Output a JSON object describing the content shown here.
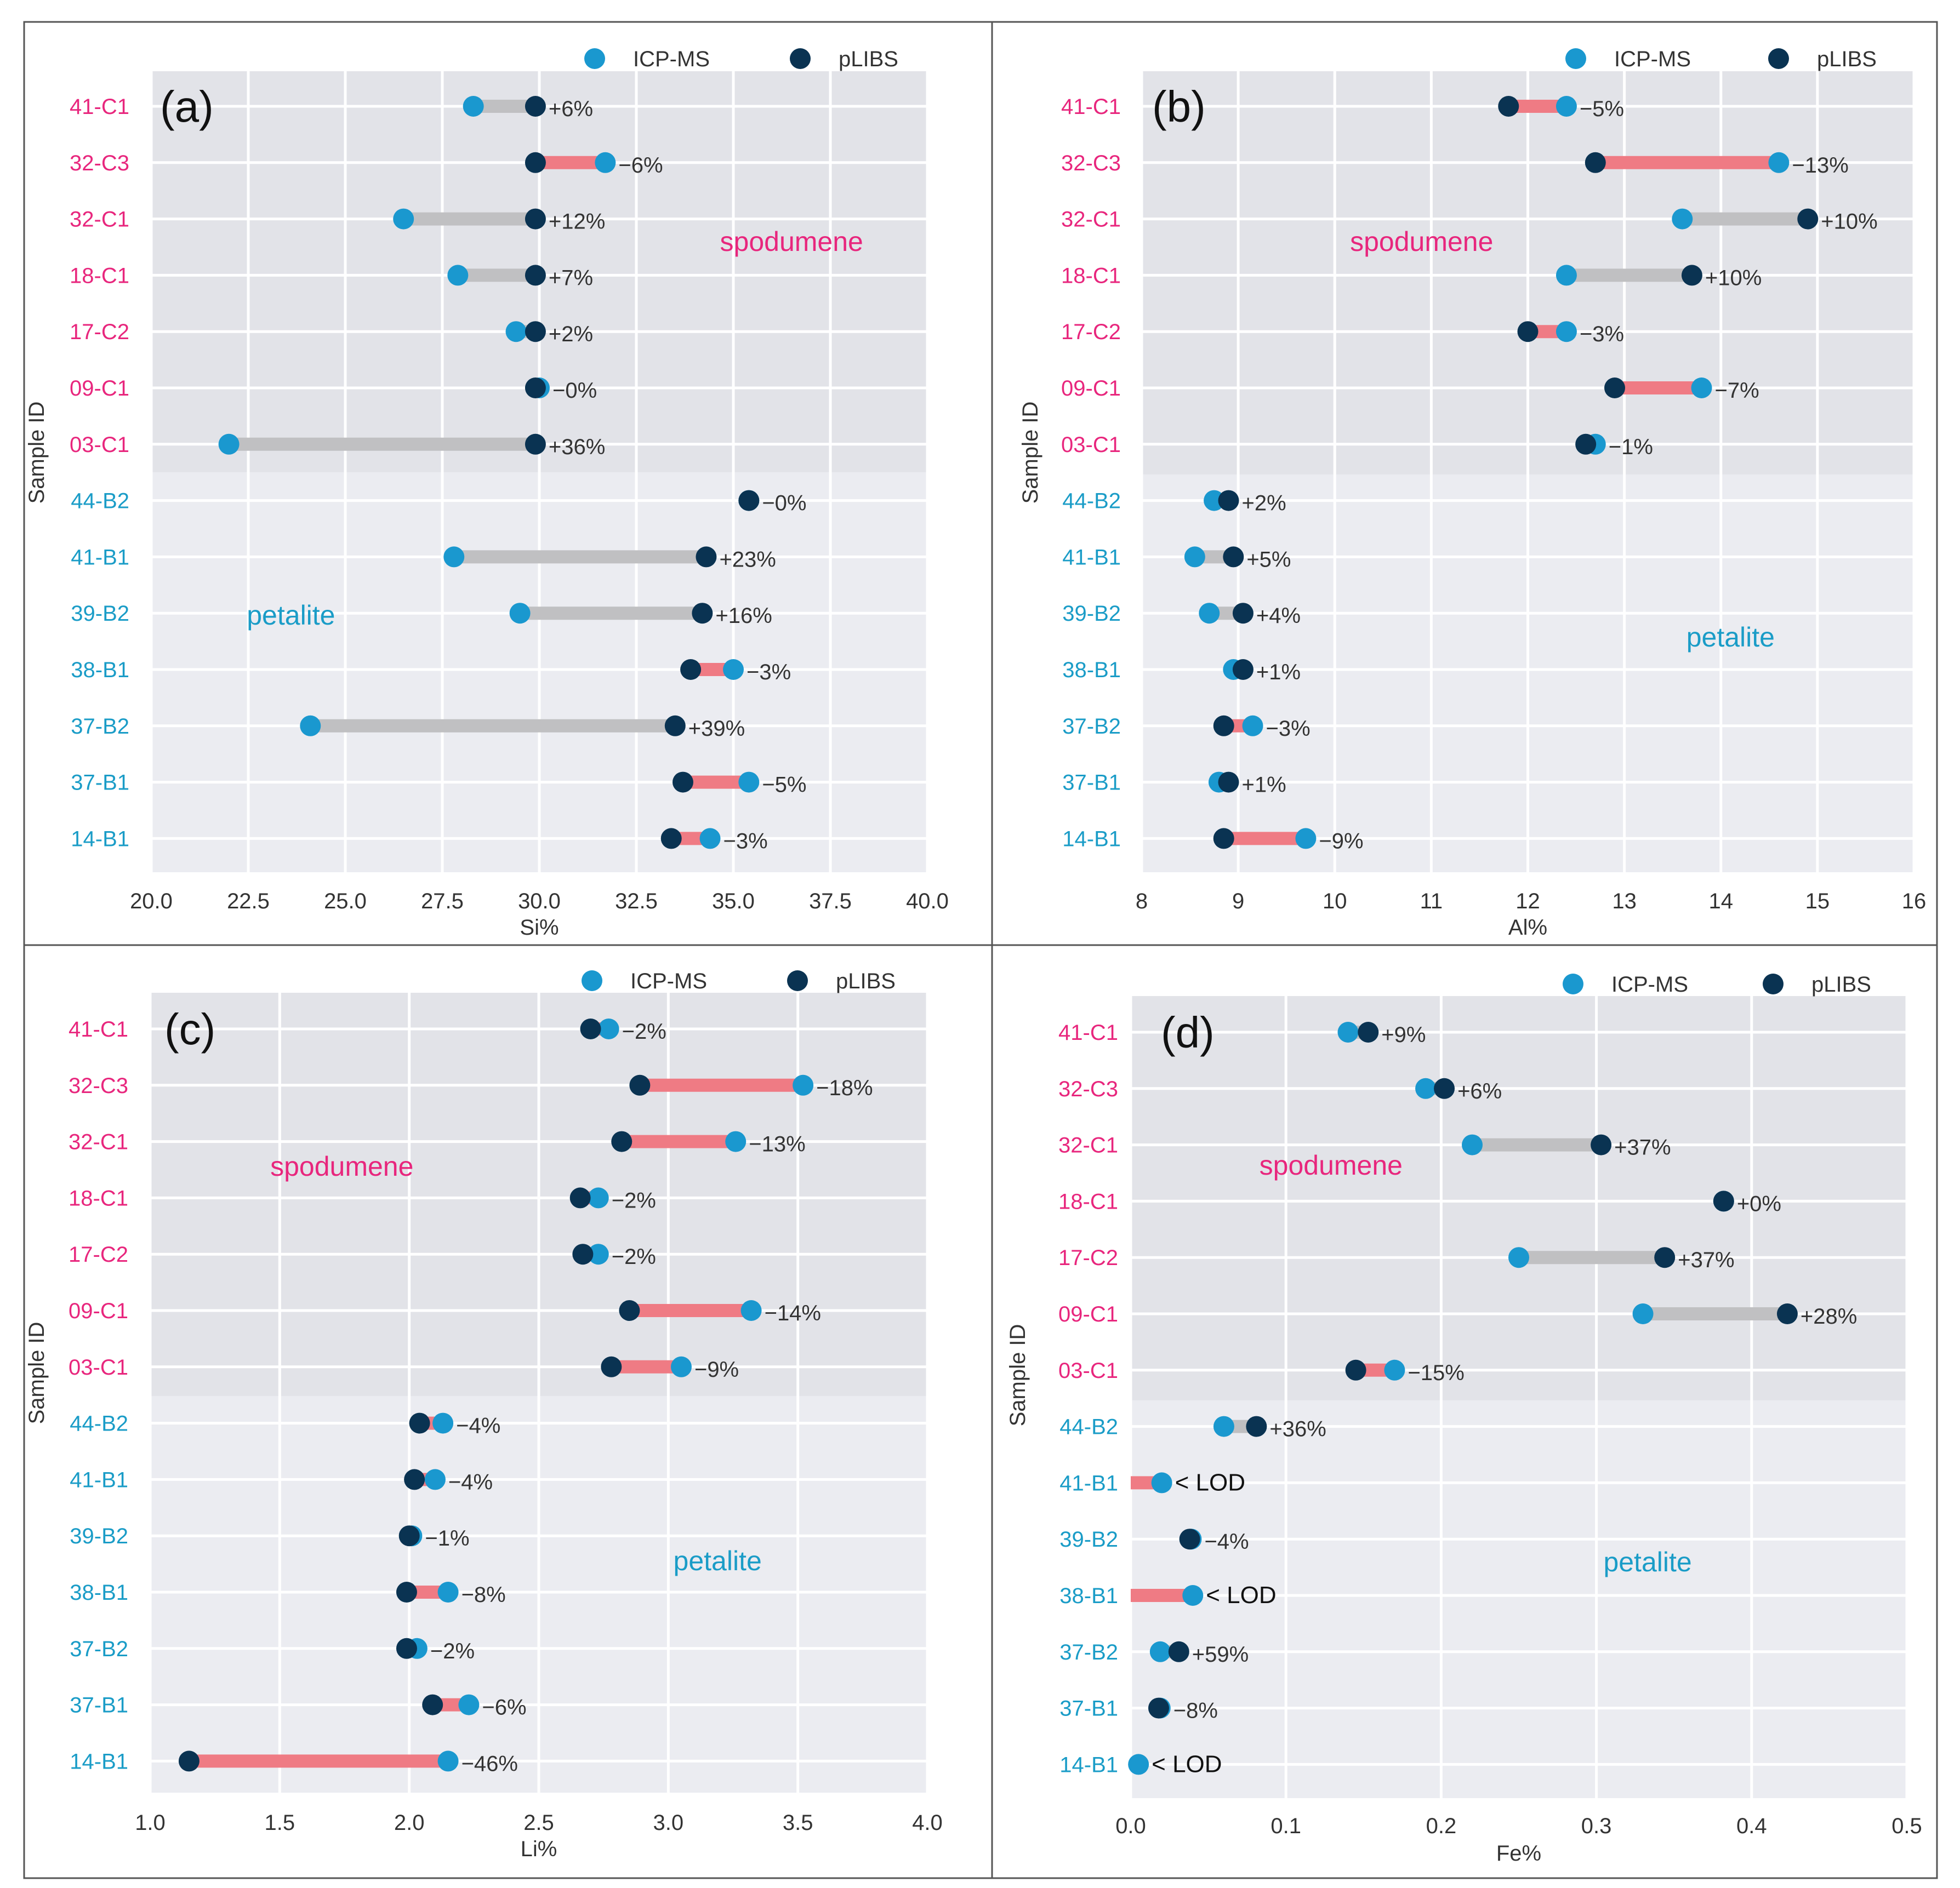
{
  "figure": {
    "y_axis_label": "Sample ID",
    "legend": {
      "icp_label": "ICP-MS",
      "libs_label": "pLIBS"
    },
    "group_labels": {
      "spodumene": "spodumene",
      "petalite": "petalite"
    },
    "lod_label": "< LOD"
  },
  "colors": {
    "spodumene_band": "#e2e3e8",
    "petalite_band": "#ebecf1",
    "grid": "#ffffff",
    "spodumene_text": "#e8267d",
    "petalite_text": "#1a9cc7",
    "icp_marker": "#1a98cf",
    "libs_marker": "#0a3352",
    "positive_bar": "#c0c0c2",
    "negative_bar": "#ef7b84",
    "annotation_text": "#333333",
    "axis_text": "#333333",
    "border": "#555555"
  },
  "sample_ids": [
    "41-C1",
    "32-C3",
    "32-C1",
    "18-C1",
    "17-C2",
    "09-C1",
    "03-C1",
    "44-B2",
    "41-B1",
    "39-B2",
    "38-B1",
    "37-B2",
    "37-B1",
    "14-B1"
  ],
  "chart_data": [
    {
      "type": "dumbbell",
      "panel": "(a)",
      "xlabel": "Si%",
      "ylabel": "Sample ID",
      "xlim": [
        20.0,
        40.0
      ],
      "xticks": [
        "20.0",
        "22.5",
        "25.0",
        "27.5",
        "30.0",
        "32.5",
        "35.0",
        "37.5",
        "40.0"
      ],
      "xtick_values": [
        20.0,
        22.5,
        25.0,
        27.5,
        30.0,
        32.5,
        35.0,
        37.5,
        40.0
      ],
      "label_pos": {
        "spodumene": 36.5,
        "petalite": 23.6
      },
      "rows": [
        {
          "id": "41-C1",
          "group": "spodumene",
          "icp": 28.3,
          "libs": 29.9,
          "label": "+6%"
        },
        {
          "id": "32-C3",
          "group": "spodumene",
          "icp": 31.7,
          "libs": 29.9,
          "label": "−6%"
        },
        {
          "id": "32-C1",
          "group": "spodumene",
          "icp": 26.5,
          "libs": 29.9,
          "label": "+12%"
        },
        {
          "id": "18-C1",
          "group": "spodumene",
          "icp": 27.9,
          "libs": 29.9,
          "label": "+7%"
        },
        {
          "id": "17-C2",
          "group": "spodumene",
          "icp": 29.4,
          "libs": 29.9,
          "label": "+2%"
        },
        {
          "id": "09-C1",
          "group": "spodumene",
          "icp": 30.0,
          "libs": 29.9,
          "label": "−0%"
        },
        {
          "id": "03-C1",
          "group": "spodumene",
          "icp": 22.0,
          "libs": 29.9,
          "label": "+36%"
        },
        {
          "id": "44-B2",
          "group": "petalite",
          "icp": 35.4,
          "libs": 35.4,
          "label": "−0%"
        },
        {
          "id": "41-B1",
          "group": "petalite",
          "icp": 27.8,
          "libs": 34.3,
          "label": "+23%"
        },
        {
          "id": "39-B2",
          "group": "petalite",
          "icp": 29.5,
          "libs": 34.2,
          "label": "+16%"
        },
        {
          "id": "38-B1",
          "group": "petalite",
          "icp": 35.0,
          "libs": 33.9,
          "label": "−3%"
        },
        {
          "id": "37-B2",
          "group": "petalite",
          "icp": 24.1,
          "libs": 33.5,
          "label": "+39%"
        },
        {
          "id": "37-B1",
          "group": "petalite",
          "icp": 35.4,
          "libs": 33.7,
          "label": "−5%"
        },
        {
          "id": "14-B1",
          "group": "petalite",
          "icp": 34.4,
          "libs": 33.4,
          "label": "−3%"
        }
      ]
    },
    {
      "type": "dumbbell",
      "panel": "(b)",
      "xlabel": "Al%",
      "ylabel": "Sample ID",
      "xlim": [
        8,
        16
      ],
      "xticks": [
        "8",
        "9",
        "10",
        "11",
        "12",
        "13",
        "14",
        "15",
        "16"
      ],
      "xtick_values": [
        8,
        9,
        10,
        11,
        12,
        13,
        14,
        15,
        16
      ],
      "label_pos": {
        "spodumene": 10.9,
        "petalite": 14.1
      },
      "rows": [
        {
          "id": "41-C1",
          "group": "spodumene",
          "icp": 12.4,
          "libs": 11.8,
          "label": "−5%"
        },
        {
          "id": "32-C3",
          "group": "spodumene",
          "icp": 14.6,
          "libs": 12.7,
          "label": "−13%"
        },
        {
          "id": "32-C1",
          "group": "spodumene",
          "icp": 13.6,
          "libs": 14.9,
          "label": "+10%"
        },
        {
          "id": "18-C1",
          "group": "spodumene",
          "icp": 12.4,
          "libs": 13.7,
          "label": "+10%"
        },
        {
          "id": "17-C2",
          "group": "spodumene",
          "icp": 12.4,
          "libs": 12.0,
          "label": "−3%"
        },
        {
          "id": "09-C1",
          "group": "spodumene",
          "icp": 13.8,
          "libs": 12.9,
          "label": "−7%"
        },
        {
          "id": "03-C1",
          "group": "spodumene",
          "icp": 12.7,
          "libs": 12.6,
          "label": "−1%"
        },
        {
          "id": "44-B2",
          "group": "petalite",
          "icp": 8.75,
          "libs": 8.9,
          "label": "+2%"
        },
        {
          "id": "41-B1",
          "group": "petalite",
          "icp": 8.55,
          "libs": 8.95,
          "label": "+5%"
        },
        {
          "id": "39-B2",
          "group": "petalite",
          "icp": 8.7,
          "libs": 9.05,
          "label": "+4%"
        },
        {
          "id": "38-B1",
          "group": "petalite",
          "icp": 8.95,
          "libs": 9.05,
          "label": "+1%"
        },
        {
          "id": "37-B2",
          "group": "petalite",
          "icp": 9.15,
          "libs": 8.85,
          "label": "−3%"
        },
        {
          "id": "37-B1",
          "group": "petalite",
          "icp": 8.8,
          "libs": 8.9,
          "label": "+1%"
        },
        {
          "id": "14-B1",
          "group": "petalite",
          "icp": 9.7,
          "libs": 8.85,
          "label": "−9%"
        }
      ]
    },
    {
      "type": "dumbbell",
      "panel": "(c)",
      "xlabel": "Li%",
      "ylabel": "Sample ID",
      "xlim": [
        1.0,
        4.0
      ],
      "xticks": [
        "1.0",
        "1.5",
        "2.0",
        "2.5",
        "3.0",
        "3.5",
        "4.0"
      ],
      "xtick_values": [
        1.0,
        1.5,
        2.0,
        2.5,
        3.0,
        3.5,
        4.0
      ],
      "label_pos": {
        "spodumene": 1.74,
        "petalite": 3.19
      },
      "rows": [
        {
          "id": "41-C1",
          "group": "spodumene",
          "icp": 2.77,
          "libs": 2.7,
          "label": "−2%"
        },
        {
          "id": "32-C3",
          "group": "spodumene",
          "icp": 3.52,
          "libs": 2.89,
          "label": "−18%"
        },
        {
          "id": "32-C1",
          "group": "spodumene",
          "icp": 3.26,
          "libs": 2.82,
          "label": "−13%"
        },
        {
          "id": "18-C1",
          "group": "spodumene",
          "icp": 2.73,
          "libs": 2.66,
          "label": "−2%"
        },
        {
          "id": "17-C2",
          "group": "spodumene",
          "icp": 2.73,
          "libs": 2.67,
          "label": "−2%"
        },
        {
          "id": "09-C1",
          "group": "spodumene",
          "icp": 3.32,
          "libs": 2.85,
          "label": "−14%"
        },
        {
          "id": "03-C1",
          "group": "spodumene",
          "icp": 3.05,
          "libs": 2.78,
          "label": "−9%"
        },
        {
          "id": "44-B2",
          "group": "petalite",
          "icp": 2.13,
          "libs": 2.04,
          "label": "−4%"
        },
        {
          "id": "41-B1",
          "group": "petalite",
          "icp": 2.1,
          "libs": 2.02,
          "label": "−4%"
        },
        {
          "id": "39-B2",
          "group": "petalite",
          "icp": 2.01,
          "libs": 2.0,
          "label": "−1%"
        },
        {
          "id": "38-B1",
          "group": "petalite",
          "icp": 2.15,
          "libs": 1.99,
          "label": "−8%"
        },
        {
          "id": "37-B2",
          "group": "petalite",
          "icp": 2.03,
          "libs": 1.99,
          "label": "−2%"
        },
        {
          "id": "37-B1",
          "group": "petalite",
          "icp": 2.23,
          "libs": 2.09,
          "label": "−6%"
        },
        {
          "id": "14-B1",
          "group": "petalite",
          "icp": 2.15,
          "libs": 1.15,
          "label": "−46%"
        }
      ]
    },
    {
      "type": "dumbbell",
      "panel": "(d)",
      "xlabel": "Fe%",
      "ylabel": "Sample ID",
      "xlim": [
        0.0,
        0.5
      ],
      "xticks": [
        "0.0",
        "0.1",
        "0.2",
        "0.3",
        "0.4",
        "0.5"
      ],
      "xtick_values": [
        0.0,
        0.1,
        0.2,
        0.3,
        0.4,
        0.5
      ],
      "label_pos": {
        "spodumene": 0.129,
        "petalite": 0.333
      },
      "rows": [
        {
          "id": "41-C1",
          "group": "spodumene",
          "icp": 0.14,
          "libs": 0.153,
          "label": "+9%"
        },
        {
          "id": "32-C3",
          "group": "spodumene",
          "icp": 0.19,
          "libs": 0.202,
          "label": "+6%"
        },
        {
          "id": "32-C1",
          "group": "spodumene",
          "icp": 0.22,
          "libs": 0.303,
          "label": "+37%"
        },
        {
          "id": "18-C1",
          "group": "spodumene",
          "icp": 0.382,
          "libs": 0.382,
          "label": "+0%"
        },
        {
          "id": "17-C2",
          "group": "spodumene",
          "icp": 0.25,
          "libs": 0.344,
          "label": "+37%"
        },
        {
          "id": "09-C1",
          "group": "spodumene",
          "icp": 0.33,
          "libs": 0.423,
          "label": "+28%"
        },
        {
          "id": "03-C1",
          "group": "spodumene",
          "icp": 0.17,
          "libs": 0.145,
          "label": "−15%"
        },
        {
          "id": "44-B2",
          "group": "petalite",
          "icp": 0.06,
          "libs": 0.081,
          "label": "+36%"
        },
        {
          "id": "41-B1",
          "group": "petalite",
          "icp": 0.02,
          "libs": 0.0,
          "label": "< LOD",
          "lod": true
        },
        {
          "id": "39-B2",
          "group": "petalite",
          "icp": 0.039,
          "libs": 0.038,
          "label": "−4%"
        },
        {
          "id": "38-B1",
          "group": "petalite",
          "icp": 0.04,
          "libs": 0.0,
          "label": "< LOD",
          "lod": true
        },
        {
          "id": "37-B2",
          "group": "petalite",
          "icp": 0.019,
          "libs": 0.031,
          "label": "+59%"
        },
        {
          "id": "37-B1",
          "group": "petalite",
          "icp": 0.019,
          "libs": 0.018,
          "label": "−8%"
        },
        {
          "id": "14-B1",
          "group": "petalite",
          "icp": 0.005,
          "libs": null,
          "label": "< LOD",
          "lod": true
        }
      ]
    }
  ]
}
